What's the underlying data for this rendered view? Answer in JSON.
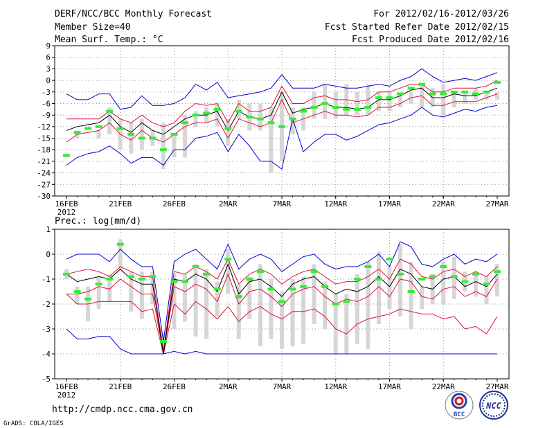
{
  "header": {
    "title": "DERF/NCC/BCC Monthly Forecast",
    "member": "Member Size=40",
    "var": "Mean Surf. Temp.: °C",
    "period": "For 2012/02/16-2012/03/26",
    "started": "Fcst Started Refer Date 2012/02/15",
    "produced": "Fcst Produced Date 2012/02/16"
  },
  "footer": {
    "url": "http://cmdp.ncc.cma.gov.cn",
    "grads": "GrADS: COLA/IGES",
    "logo_bcc": "BCC",
    "logo_ncc": "NCC"
  },
  "colors": {
    "envelope": "#0000cc",
    "pct": "#dd1133",
    "mean": "#000000",
    "box": "#d6d6d6",
    "median": "#33ee33"
  },
  "chart_data": [
    {
      "type": "box",
      "title": "Mean Surf. Temp.: °C",
      "ylim": [
        -30,
        9
      ],
      "yticks": [
        "9",
        "6",
        "3",
        "0",
        "-3",
        "-6",
        "-9",
        "-12",
        "-15",
        "-18",
        "-21",
        "-24",
        "-27",
        "-30"
      ],
      "xlim": [
        0,
        40
      ],
      "xticks": [
        {
          "day": 0,
          "label": "16FEB"
        },
        {
          "day": 5,
          "label": "21FEB"
        },
        {
          "day": 10,
          "label": "26FEB"
        },
        {
          "day": 15,
          "label": "2MAR"
        },
        {
          "day": 20,
          "label": "7MAR"
        },
        {
          "day": 25,
          "label": "12MAR"
        },
        {
          "day": 30,
          "label": "17MAR"
        },
        {
          "day": 35,
          "label": "22MAR"
        },
        {
          "day": 40,
          "label": "27MAR"
        }
      ],
      "year_label": "2012",
      "max": [
        -3.5,
        -5,
        -5,
        -3.5,
        -3.5,
        -7.5,
        -7,
        -4,
        -6.5,
        -6.5,
        -6,
        -4.5,
        -1,
        -2.5,
        -0.5,
        -4.5,
        -4,
        -3.5,
        -3,
        -2,
        1.5,
        -2,
        -2,
        -2,
        -1,
        -1.5,
        -2,
        -2,
        -1.5,
        -1,
        -1.5,
        0,
        1,
        3,
        1,
        -0.5,
        0,
        0.5,
        0,
        1,
        2
      ],
      "p85": [
        -10,
        -10,
        -10,
        -10,
        -8,
        -10,
        -11,
        -9,
        -11,
        -12,
        -11,
        -8,
        -6,
        -6.5,
        -6,
        -11,
        -6,
        -8,
        -8,
        -7,
        -1.5,
        -6,
        -6,
        -4.5,
        -4,
        -5,
        -5,
        -5.5,
        -5,
        -3,
        -3,
        -2,
        -1,
        -1,
        -3,
        -3,
        -2,
        -2,
        -2,
        -1.5,
        0
      ],
      "mean": [
        -13,
        -12,
        -11.5,
        -11,
        -9,
        -12,
        -13.5,
        -11,
        -13,
        -14,
        -12,
        -10,
        -9,
        -9,
        -8,
        -13,
        -8,
        -9.5,
        -10,
        -9,
        -3,
        -8.5,
        -7.5,
        -7,
        -6,
        -7,
        -7,
        -7.5,
        -7,
        -5,
        -5,
        -4,
        -2.5,
        -2,
        -4.5,
        -4.5,
        -3.5,
        -4,
        -4,
        -3,
        -2
      ],
      "p15": [
        -16,
        -14,
        -13.5,
        -13,
        -11,
        -14,
        -15.5,
        -13,
        -15,
        -16,
        -14,
        -12,
        -11,
        -11,
        -10,
        -15,
        -10,
        -11,
        -12,
        -11,
        -5,
        -11,
        -10,
        -9,
        -8,
        -9,
        -9,
        -9.5,
        -9,
        -7,
        -7,
        -6,
        -4.5,
        -4,
        -6.5,
        -6.5,
        -5.5,
        -5.5,
        -5.5,
        -4.5,
        -3.5
      ],
      "min": [
        -22,
        -20,
        -19,
        -18.5,
        -17,
        -19,
        -21.5,
        -20,
        -20,
        -22,
        -18,
        -18,
        -15,
        -14.5,
        -13.5,
        -18.5,
        -14,
        -17,
        -21,
        -21,
        -23,
        -10,
        -18.5,
        -16,
        -14,
        -14,
        -15.5,
        -14.5,
        -13,
        -11.5,
        -11,
        -10,
        -9,
        -7,
        -9,
        -9.5,
        -8.5,
        -7.5,
        -8,
        -7,
        -6.5
      ],
      "box_top": [
        -19,
        -13,
        -11,
        -13,
        -7,
        -10,
        -11,
        -10,
        -13,
        -11,
        -14,
        -9,
        -8,
        -7,
        -6,
        -10,
        -5,
        -6,
        -6,
        -7,
        -3,
        -7,
        -7,
        -3,
        -1,
        -3,
        -1,
        -3,
        -1,
        -3,
        -3,
        -4,
        -3,
        -1,
        -2,
        -1,
        -3,
        -3,
        -2,
        -3,
        -3
      ],
      "box_bottom": [
        -19,
        -15,
        -11,
        -15,
        -14,
        -18,
        -19,
        -18,
        -17,
        -23,
        -20,
        -20,
        -12,
        -11,
        -12,
        -17,
        -10,
        -13,
        -13,
        -24,
        -21,
        -14,
        -13,
        -10,
        -10,
        -10,
        -9,
        -9,
        -9,
        -8,
        -8,
        -7,
        -6,
        -7,
        -7,
        -9,
        -7,
        -6,
        -5,
        -5,
        -5
      ],
      "median": [
        -19.5,
        -13.5,
        -12.5,
        -12,
        -8,
        -12.5,
        -14,
        -15,
        -15,
        -18,
        -14,
        -11,
        -9,
        -8.5,
        -7.5,
        -12.5,
        -8,
        -9.5,
        -10,
        -11,
        -12,
        -10,
        -8,
        -7,
        -6,
        -7,
        -7.5,
        -7.5,
        -7,
        -4.5,
        -4.5,
        -3.5,
        -2,
        -1,
        -3.5,
        -3.5,
        -3,
        -3,
        -3.5,
        -3,
        -0.5
      ]
    },
    {
      "type": "box",
      "title": "Prec.: log(mm/d)",
      "ylim": [
        -5,
        1
      ],
      "yticks": [
        "1",
        "0",
        "-1",
        "-2",
        "-3",
        "-4",
        "-5"
      ],
      "xlim": [
        0,
        40
      ],
      "xticks": [
        {
          "day": 0,
          "label": "16FEB"
        },
        {
          "day": 5,
          "label": "21FEB"
        },
        {
          "day": 10,
          "label": "26FEB"
        },
        {
          "day": 15,
          "label": "2MAR"
        },
        {
          "day": 20,
          "label": "7MAR"
        },
        {
          "day": 25,
          "label": "12MAR"
        },
        {
          "day": 30,
          "label": "17MAR"
        },
        {
          "day": 35,
          "label": "22MAR"
        },
        {
          "day": 40,
          "label": "27MAR"
        }
      ],
      "year_label": "2012",
      "max": [
        -0.2,
        0,
        0,
        0,
        -0.3,
        0.2,
        -0.2,
        -0.5,
        -0.5,
        -3.5,
        -0.3,
        0,
        0.2,
        -0.2,
        -0.6,
        0.4,
        -0.6,
        -0.2,
        0,
        -0.2,
        -0.7,
        -0.4,
        -0.1,
        0,
        -0.4,
        -0.6,
        -0.5,
        -0.5,
        -0.3,
        0,
        -0.5,
        0.5,
        0.3,
        -0.4,
        -0.5,
        -0.2,
        0,
        -0.4,
        -0.2,
        -0.3,
        0
      ],
      "p85": [
        -0.8,
        -0.7,
        -0.6,
        -0.7,
        -0.9,
        -0.5,
        -0.7,
        -0.9,
        -0.9,
        -3.9,
        -0.7,
        -0.8,
        -0.5,
        -0.7,
        -1.0,
        -0.2,
        -1.2,
        -0.8,
        -0.6,
        -0.8,
        -1.2,
        -0.9,
        -0.7,
        -0.6,
        -0.9,
        -1.2,
        -1.1,
        -1.1,
        -0.9,
        -0.6,
        -1.0,
        -0.2,
        -0.4,
        -0.9,
        -1.0,
        -0.7,
        -0.6,
        -0.9,
        -0.7,
        -0.9,
        -0.5
      ],
      "mean": [
        -0.8,
        -1.1,
        -1.0,
        -0.9,
        -1.0,
        -0.6,
        -1.0,
        -1.2,
        -1.2,
        -4.0,
        -1.0,
        -1.1,
        -0.8,
        -1.0,
        -1.5,
        -0.4,
        -1.6,
        -1.1,
        -1.0,
        -1.3,
        -1.7,
        -1.2,
        -1.0,
        -0.9,
        -1.3,
        -1.6,
        -1.4,
        -1.5,
        -1.3,
        -0.9,
        -1.3,
        -0.6,
        -0.8,
        -1.3,
        -1.4,
        -1.0,
        -0.9,
        -1.3,
        -1.1,
        -1.3,
        -0.8
      ],
      "p15": [
        -1.6,
        -1.6,
        -1.5,
        -1.3,
        -1.4,
        -1.0,
        -1.3,
        -1.6,
        -1.6,
        -4.0,
        -1.3,
        -1.5,
        -1.2,
        -1.4,
        -1.9,
        -0.8,
        -2.0,
        -1.5,
        -1.4,
        -1.7,
        -2.1,
        -1.6,
        -1.4,
        -1.3,
        -1.7,
        -2.0,
        -1.8,
        -1.9,
        -1.7,
        -1.3,
        -1.7,
        -1.0,
        -1.1,
        -1.7,
        -1.8,
        -1.4,
        -1.3,
        -1.7,
        -1.5,
        -1.7,
        -1.0
      ],
      "p05": [
        -1.6,
        -2.0,
        -2.0,
        -1.9,
        -1.9,
        -1.9,
        -1.9,
        -2.3,
        -2.2,
        -4.0,
        -2.0,
        -2.4,
        -1.9,
        -2.2,
        -2.6,
        -2.1,
        -2.7,
        -2.3,
        -2.1,
        -2.4,
        -2.6,
        -2.3,
        -2.3,
        -2.2,
        -2.5,
        -3.0,
        -3.2,
        -2.8,
        -2.6,
        -2.5,
        -2.4,
        -2.2,
        -2.3,
        -2.4,
        -2.4,
        -2.6,
        -2.5,
        -3.0,
        -2.9,
        -3.2,
        -2.5
      ],
      "min": [
        -3.0,
        -3.4,
        -3.4,
        -3.3,
        -3.3,
        -3.8,
        -4.0,
        -4.0,
        -4.0,
        -4.0,
        -3.9,
        -4.0,
        -3.9,
        -4.0,
        -4.0,
        -4.0,
        -4.0,
        -4.0,
        -4.0,
        -4.0,
        -4.0,
        -4.0,
        -4.0,
        -4.0,
        -4.0,
        -4.0,
        -4.0,
        -4.0,
        -4.0,
        -4.0,
        -4.0,
        -4.0,
        -4.0,
        -4.0,
        -4.0,
        -4.0,
        -4.0,
        -4.0,
        -4.0,
        -4.0,
        -4.0
      ],
      "box_top": [
        -0.6,
        -1.3,
        -1.3,
        -0.9,
        -0.8,
        0.6,
        -0.7,
        -0.7,
        -0.7,
        -3.2,
        -0.8,
        -0.8,
        -0.4,
        -0.6,
        -1.1,
        0.2,
        -1.2,
        -0.9,
        -0.4,
        -1.0,
        -1.5,
        -1.0,
        -0.9,
        -0.4,
        -1.1,
        -1.6,
        -1.6,
        -0.8,
        -0.3,
        0.1,
        -0.5,
        0.4,
        -0.3,
        -1.3,
        -0.8,
        -0.3,
        -0.1,
        -0.7,
        -0.7,
        -0.9,
        -0.4
      ],
      "box_bottom": [
        -1.0,
        -2.0,
        -2.7,
        -2.2,
        -1.9,
        -0.6,
        -2.3,
        -2.6,
        -2.0,
        -4.0,
        -3.0,
        -2.7,
        -3.3,
        -3.4,
        -2.5,
        -1.6,
        -3.4,
        -2.6,
        -3.7,
        -3.4,
        -3.8,
        -3.7,
        -3.6,
        -2.8,
        -3.0,
        -4.0,
        -4.0,
        -3.6,
        -3.8,
        -2.8,
        -2.2,
        -2.5,
        -3.0,
        -2.2,
        -2.0,
        -2.0,
        -1.8,
        -1.5,
        -1.7,
        -2.0,
        -1.7
      ],
      "median": [
        -0.8,
        -1.5,
        -1.8,
        -1.2,
        -1.0,
        0.4,
        -0.9,
        -1.0,
        -0.9,
        -3.5,
        -1.1,
        -1.1,
        -0.5,
        -0.8,
        -1.4,
        -0.2,
        -1.7,
        -1.0,
        -0.7,
        -1.4,
        -1.9,
        -1.4,
        -1.3,
        -0.7,
        -1.3,
        -2.0,
        -1.9,
        -1.0,
        -0.5,
        -1.0,
        -0.2,
        -0.8,
        -1.5,
        -1.0,
        -0.9,
        -0.5,
        -0.9,
        -1.1,
        -0.8,
        -1.2,
        -0.7
      ]
    }
  ]
}
